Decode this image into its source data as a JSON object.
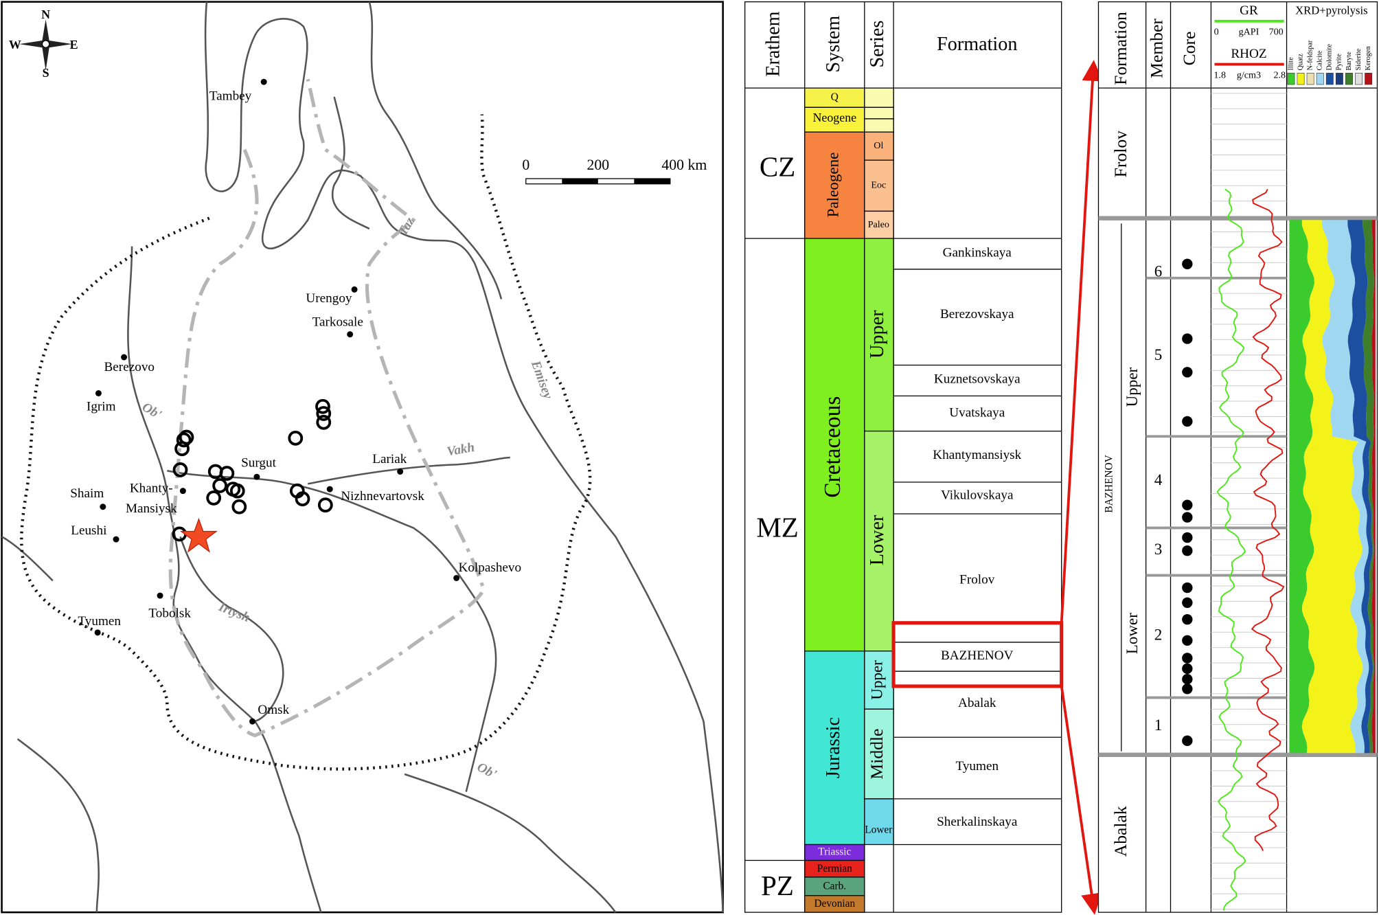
{
  "map": {
    "compass": {
      "N": "N",
      "S": "S",
      "W": "W",
      "E": "E"
    },
    "scale": [
      "0",
      "200",
      "400 km"
    ],
    "cities": [
      [
        "Tambey"
      ],
      [
        "Urengoy"
      ],
      [
        "Tarkosale"
      ],
      [
        "Berezovo"
      ],
      [
        "Igrim"
      ],
      [
        "Surgut"
      ],
      [
        "Lariak"
      ],
      [
        "Nizhnevartovsk"
      ],
      [
        "Shaim"
      ],
      [
        "Khanty-",
        "Mansiysk"
      ],
      [
        "Leushi"
      ],
      [
        "Kolpashevo"
      ],
      [
        "Tobolsk"
      ],
      [
        "Tyumen"
      ],
      [
        "Omsk"
      ]
    ],
    "rivers": [
      "Ob'",
      "Taz",
      "Emisey",
      "Vakh",
      "Irtysh",
      "Ob'"
    ]
  },
  "stratigraphy": {
    "headers": [
      "Erathem",
      "System",
      "Series",
      "Formation"
    ],
    "erathems": [
      "CZ",
      "MZ",
      "PZ"
    ],
    "systems": [
      "Q",
      "Neogene",
      "Paleogene",
      "Cretaceous",
      "Jurassic",
      "Triassic",
      "Permian",
      "Carb.",
      "Devonian"
    ],
    "series": [
      "Ol",
      "Eoc",
      "Paleo",
      "Upper",
      "Lower",
      "Upper",
      "Middle",
      "Lower"
    ],
    "formations": [
      "Gankinskaya",
      "Berezovskaya",
      "Kuznetsovskaya",
      "Uvatskaya",
      "Khantymansiysk",
      "Vikulovskaya",
      "Frolov",
      "BAZHENOV",
      "Abalak",
      "Tyumen",
      "Sherkalinskaya"
    ]
  },
  "log": {
    "headers": [
      "Formation",
      "Member",
      "Core"
    ],
    "gr": {
      "name": "GR",
      "min": "0",
      "unit": "gAPI",
      "max": "700"
    },
    "rhoz": {
      "name": "RHOZ",
      "min": "1.8",
      "unit": "g/cm3",
      "max": "2.8"
    },
    "xrd_title": "XRD+pyrolysis",
    "minerals": [
      "Illite",
      "Quatz",
      "N-feldspar",
      "Calcite",
      "Dolomite",
      "Pyrite",
      "Baryte",
      "Siderite",
      "Kerogen"
    ],
    "formations": [
      "Frolov",
      "BAZHENOV",
      "Abalak"
    ],
    "subunits": [
      "Upper",
      "Lower"
    ],
    "members": [
      "6",
      "5",
      "4",
      "3",
      "2",
      "1"
    ]
  }
}
